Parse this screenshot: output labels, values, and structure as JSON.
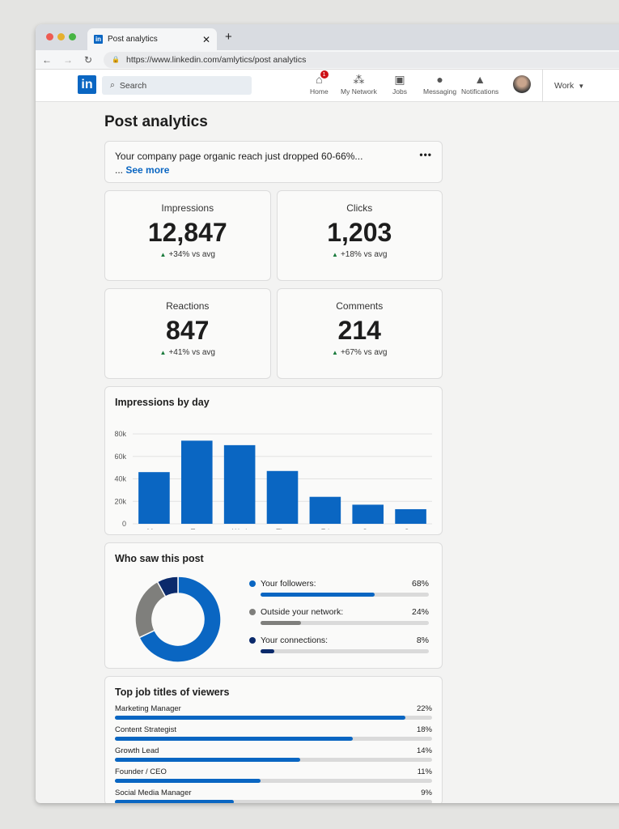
{
  "browser": {
    "tab_title": "Post analytics",
    "url": "https://www.linkedin.com/amlytics/post analytics"
  },
  "nav": {
    "logo": "in",
    "search_placeholder": "Search",
    "items": [
      {
        "label": "Home",
        "icon": "home-icon",
        "badge": "1"
      },
      {
        "label": "My Network",
        "icon": "network-icon"
      },
      {
        "label": "Jobs",
        "icon": "briefcase-icon"
      },
      {
        "label": "Messaging",
        "icon": "message-icon"
      },
      {
        "label": "Notifications",
        "icon": "bell-icon"
      }
    ],
    "work": "Work"
  },
  "page": {
    "title": "Post analytics",
    "notice": "Your company page organic reach just dropped 60-66%...",
    "notice_prefix": "... ",
    "see_more": "See more"
  },
  "stats": [
    {
      "label": "Impressions",
      "value": "12,847",
      "change": "+34% vs avg"
    },
    {
      "label": "Clicks",
      "value": "1,203",
      "change": "+18% vs avg"
    },
    {
      "label": "Reactions",
      "value": "847",
      "change": "+41% vs avg"
    },
    {
      "label": "Comments",
      "value": "214",
      "change": "+67% vs avg"
    }
  ],
  "chart_data": [
    {
      "type": "bar",
      "title": "Impressions by day",
      "categories": [
        "Mon",
        "Tue",
        "Wed",
        "Thu",
        "Fri",
        "Sat",
        "Sun"
      ],
      "values": [
        46000,
        74000,
        70000,
        47000,
        24000,
        17000,
        13000
      ],
      "ylim": [
        0,
        80000
      ],
      "yticks": [
        "0",
        "20k",
        "40k",
        "60k",
        "80k"
      ],
      "grid": true,
      "color": "#0a66c2"
    },
    {
      "type": "pie",
      "title": "Who saw this post",
      "donut": true,
      "slices": [
        {
          "name": "Your followers:",
          "value": 68,
          "label": "68%",
          "color": "#0a66c2"
        },
        {
          "name": "Outside your network:",
          "value": 24,
          "label": "24%",
          "color": "#7f7f7c"
        },
        {
          "name": "Your connections:",
          "value": 8,
          "label": "8%",
          "color": "#0b2a6b"
        }
      ]
    },
    {
      "type": "bar",
      "orientation": "horizontal",
      "title": "Top job titles of viewers",
      "categories": [
        "Marketing Manager",
        "Content Strategist",
        "Growth Lead",
        "Founder / CEO",
        "Social Media Manager"
      ],
      "values": [
        22,
        18,
        14,
        11,
        9
      ],
      "labels": [
        "22%",
        "18%",
        "14%",
        "11%",
        "9%"
      ],
      "color": "#0a66c2"
    }
  ]
}
